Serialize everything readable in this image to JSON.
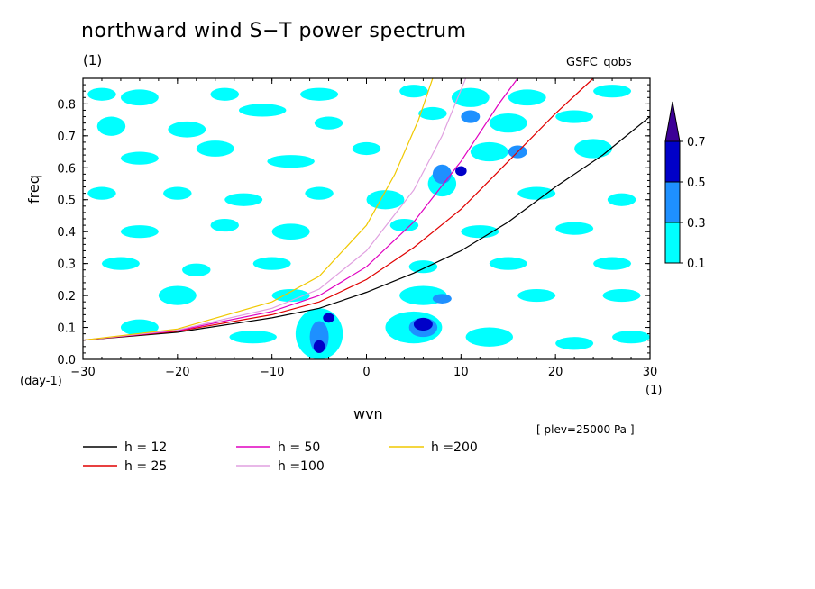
{
  "title": "northward wind S−T power spectrum",
  "units_top": "(1)",
  "source_label": "GSFC_qobs",
  "level_note": "[ plev=25000 Pa ]",
  "chart_data": {
    "type": "contour",
    "xlabel": "wvn",
    "ylabel": "freq",
    "x_unit": "(1)",
    "y_unit": "(day-1)",
    "xlim": [
      -30,
      30
    ],
    "ylim": [
      0,
      0.88
    ],
    "x_ticks": [
      -30,
      -20,
      -10,
      0,
      10,
      20,
      30
    ],
    "x_tick_labels": [
      "−30",
      "−20",
      "−10",
      "0",
      "10",
      "20",
      "30"
    ],
    "y_ticks": [
      0,
      0.1,
      0.2,
      0.3,
      0.4,
      0.5,
      0.6,
      0.7,
      0.8
    ],
    "y_tick_labels": [
      "0.0",
      "0.1",
      "0.2",
      "0.3",
      "0.4",
      "0.5",
      "0.6",
      "0.7",
      "0.8"
    ],
    "contour_levels": [
      0.1,
      0.3,
      0.5,
      0.7
    ],
    "colorbar_labels": [
      "0.1",
      "0.3",
      "0.5",
      "0.7"
    ],
    "colorbar_colors": [
      "#00ffff",
      "#1e90ff",
      "#0000c8",
      "#3c0096"
    ],
    "series": [
      {
        "name": "h = 12",
        "color": "#000000",
        "x": [
          -30,
          -20,
          -10,
          -5,
          0,
          5,
          10,
          15,
          20,
          25,
          30
        ],
        "y": [
          0.06,
          0.085,
          0.13,
          0.16,
          0.21,
          0.27,
          0.34,
          0.43,
          0.54,
          0.64,
          0.76
        ]
      },
      {
        "name": "h = 25",
        "color": "#e00000",
        "x": [
          -30,
          -20,
          -10,
          -5,
          0,
          5,
          10,
          15,
          20,
          24
        ],
        "y": [
          0.06,
          0.088,
          0.14,
          0.18,
          0.25,
          0.35,
          0.47,
          0.62,
          0.77,
          0.88
        ]
      },
      {
        "name": "h = 50",
        "color": "#e000c0",
        "x": [
          -30,
          -20,
          -10,
          -5,
          0,
          5,
          10,
          14,
          16
        ],
        "y": [
          0.06,
          0.09,
          0.15,
          0.2,
          0.29,
          0.43,
          0.62,
          0.8,
          0.88
        ]
      },
      {
        "name": "h =100",
        "color": "#e0a0e0",
        "x": [
          -30,
          -20,
          -10,
          -5,
          0,
          5,
          8,
          10.5
        ],
        "y": [
          0.06,
          0.092,
          0.16,
          0.22,
          0.34,
          0.53,
          0.7,
          0.88
        ]
      },
      {
        "name": "h =200",
        "color": "#f0c800",
        "x": [
          -30,
          -20,
          -10,
          -5,
          0,
          3,
          5.5,
          7
        ],
        "y": [
          0.06,
          0.095,
          0.18,
          0.26,
          0.42,
          0.58,
          0.75,
          0.88
        ]
      }
    ],
    "contour_blobs": [
      {
        "level": 0.1,
        "x": -28,
        "y": 0.83,
        "rx": 1.5,
        "ry": 0.02
      },
      {
        "level": 0.1,
        "x": -24,
        "y": 0.82,
        "rx": 2,
        "ry": 0.025
      },
      {
        "level": 0.1,
        "x": -15,
        "y": 0.83,
        "rx": 1.5,
        "ry": 0.02
      },
      {
        "level": 0.1,
        "x": -5,
        "y": 0.83,
        "rx": 2,
        "ry": 0.02
      },
      {
        "level": 0.1,
        "x": 5,
        "y": 0.84,
        "rx": 1.5,
        "ry": 0.02
      },
      {
        "level": 0.1,
        "x": 11,
        "y": 0.82,
        "rx": 2,
        "ry": 0.03
      },
      {
        "level": 0.1,
        "x": 17,
        "y": 0.82,
        "rx": 2,
        "ry": 0.025
      },
      {
        "level": 0.1,
        "x": 26,
        "y": 0.84,
        "rx": 2,
        "ry": 0.02
      },
      {
        "level": 0.1,
        "x": -27,
        "y": 0.73,
        "rx": 1.5,
        "ry": 0.03
      },
      {
        "level": 0.1,
        "x": -19,
        "y": 0.72,
        "rx": 2,
        "ry": 0.025
      },
      {
        "level": 0.1,
        "x": -11,
        "y": 0.78,
        "rx": 2.5,
        "ry": 0.02
      },
      {
        "level": 0.1,
        "x": -4,
        "y": 0.74,
        "rx": 1.5,
        "ry": 0.02
      },
      {
        "level": 0.1,
        "x": 7,
        "y": 0.77,
        "rx": 1.5,
        "ry": 0.02
      },
      {
        "level": 0.1,
        "x": 15,
        "y": 0.74,
        "rx": 2,
        "ry": 0.03
      },
      {
        "level": 0.1,
        "x": 22,
        "y": 0.76,
        "rx": 2,
        "ry": 0.02
      },
      {
        "level": 0.1,
        "x": -24,
        "y": 0.63,
        "rx": 2,
        "ry": 0.02
      },
      {
        "level": 0.1,
        "x": -16,
        "y": 0.66,
        "rx": 2,
        "ry": 0.025
      },
      {
        "level": 0.1,
        "x": -8,
        "y": 0.62,
        "rx": 2.5,
        "ry": 0.02
      },
      {
        "level": 0.1,
        "x": 0,
        "y": 0.66,
        "rx": 1.5,
        "ry": 0.02
      },
      {
        "level": 0.1,
        "x": 13,
        "y": 0.65,
        "rx": 2,
        "ry": 0.03
      },
      {
        "level": 0.1,
        "x": 24,
        "y": 0.66,
        "rx": 2,
        "ry": 0.03
      },
      {
        "level": 0.1,
        "x": -28,
        "y": 0.52,
        "rx": 1.5,
        "ry": 0.02
      },
      {
        "level": 0.1,
        "x": -20,
        "y": 0.52,
        "rx": 1.5,
        "ry": 0.02
      },
      {
        "level": 0.1,
        "x": -13,
        "y": 0.5,
        "rx": 2,
        "ry": 0.02
      },
      {
        "level": 0.1,
        "x": -5,
        "y": 0.52,
        "rx": 1.5,
        "ry": 0.02
      },
      {
        "level": 0.1,
        "x": 2,
        "y": 0.5,
        "rx": 2,
        "ry": 0.03
      },
      {
        "level": 0.1,
        "x": 8,
        "y": 0.55,
        "rx": 1.5,
        "ry": 0.04
      },
      {
        "level": 0.1,
        "x": 18,
        "y": 0.52,
        "rx": 2,
        "ry": 0.02
      },
      {
        "level": 0.1,
        "x": 27,
        "y": 0.5,
        "rx": 1.5,
        "ry": 0.02
      },
      {
        "level": 0.1,
        "x": -24,
        "y": 0.4,
        "rx": 2,
        "ry": 0.02
      },
      {
        "level": 0.1,
        "x": -15,
        "y": 0.42,
        "rx": 1.5,
        "ry": 0.02
      },
      {
        "level": 0.1,
        "x": -8,
        "y": 0.4,
        "rx": 2,
        "ry": 0.025
      },
      {
        "level": 0.1,
        "x": 4,
        "y": 0.42,
        "rx": 1.5,
        "ry": 0.02
      },
      {
        "level": 0.1,
        "x": 12,
        "y": 0.4,
        "rx": 2,
        "ry": 0.02
      },
      {
        "level": 0.1,
        "x": 22,
        "y": 0.41,
        "rx": 2,
        "ry": 0.02
      },
      {
        "level": 0.1,
        "x": -26,
        "y": 0.3,
        "rx": 2,
        "ry": 0.02
      },
      {
        "level": 0.1,
        "x": -18,
        "y": 0.28,
        "rx": 1.5,
        "ry": 0.02
      },
      {
        "level": 0.1,
        "x": -10,
        "y": 0.3,
        "rx": 2,
        "ry": 0.02
      },
      {
        "level": 0.1,
        "x": 6,
        "y": 0.29,
        "rx": 1.5,
        "ry": 0.02
      },
      {
        "level": 0.1,
        "x": 15,
        "y": 0.3,
        "rx": 2,
        "ry": 0.02
      },
      {
        "level": 0.1,
        "x": 26,
        "y": 0.3,
        "rx": 2,
        "ry": 0.02
      },
      {
        "level": 0.1,
        "x": -20,
        "y": 0.2,
        "rx": 2,
        "ry": 0.03
      },
      {
        "level": 0.1,
        "x": -8,
        "y": 0.2,
        "rx": 2,
        "ry": 0.02
      },
      {
        "level": 0.1,
        "x": 6,
        "y": 0.2,
        "rx": 2.5,
        "ry": 0.03
      },
      {
        "level": 0.1,
        "x": 18,
        "y": 0.2,
        "rx": 2,
        "ry": 0.02
      },
      {
        "level": 0.1,
        "x": 27,
        "y": 0.2,
        "rx": 2,
        "ry": 0.02
      },
      {
        "level": 0.1,
        "x": -24,
        "y": 0.1,
        "rx": 2,
        "ry": 0.025
      },
      {
        "level": 0.1,
        "x": -12,
        "y": 0.07,
        "rx": 2.5,
        "ry": 0.02
      },
      {
        "level": 0.1,
        "x": -5,
        "y": 0.08,
        "rx": 2.5,
        "ry": 0.08
      },
      {
        "level": 0.1,
        "x": 5,
        "y": 0.1,
        "rx": 3,
        "ry": 0.05
      },
      {
        "level": 0.1,
        "x": 13,
        "y": 0.07,
        "rx": 2.5,
        "ry": 0.03
      },
      {
        "level": 0.1,
        "x": 22,
        "y": 0.05,
        "rx": 2,
        "ry": 0.02
      },
      {
        "level": 0.1,
        "x": 28,
        "y": 0.07,
        "rx": 2,
        "ry": 0.02
      },
      {
        "level": 0.3,
        "x": 8,
        "y": 0.58,
        "rx": 1,
        "ry": 0.03
      },
      {
        "level": 0.3,
        "x": 11,
        "y": 0.76,
        "rx": 1,
        "ry": 0.02
      },
      {
        "level": 0.3,
        "x": 16,
        "y": 0.65,
        "rx": 1,
        "ry": 0.02
      },
      {
        "level": 0.3,
        "x": -5,
        "y": 0.07,
        "rx": 1,
        "ry": 0.05
      },
      {
        "level": 0.3,
        "x": 6,
        "y": 0.1,
        "rx": 1.5,
        "ry": 0.03
      },
      {
        "level": 0.3,
        "x": 8,
        "y": 0.19,
        "rx": 1,
        "ry": 0.015
      },
      {
        "level": 0.5,
        "x": -4,
        "y": 0.13,
        "rx": 0.6,
        "ry": 0.015
      },
      {
        "level": 0.5,
        "x": -5,
        "y": 0.04,
        "rx": 0.6,
        "ry": 0.02
      },
      {
        "level": 0.5,
        "x": 6,
        "y": 0.11,
        "rx": 1,
        "ry": 0.02
      },
      {
        "level": 0.5,
        "x": 10,
        "y": 0.59,
        "rx": 0.6,
        "ry": 0.015
      }
    ]
  },
  "legend": [
    {
      "label": "h = 12",
      "color": "#000000"
    },
    {
      "label": "h = 25",
      "color": "#e00000"
    },
    {
      "label": "h = 50",
      "color": "#e000c0"
    },
    {
      "label": "h =100",
      "color": "#e0a0e0"
    },
    {
      "label": "h =200",
      "color": "#f0c800"
    }
  ]
}
